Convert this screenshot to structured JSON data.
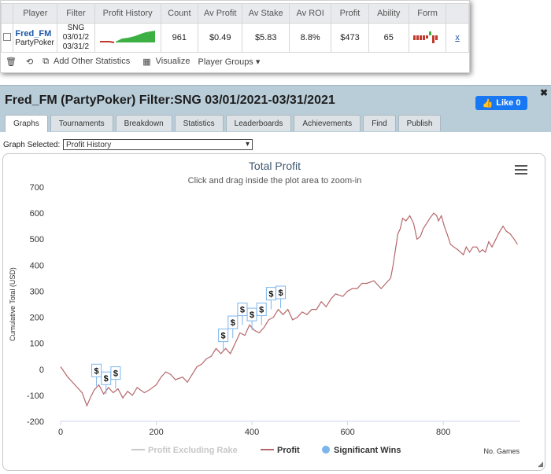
{
  "summary": {
    "headers": [
      "Player",
      "Filter",
      "Profit History",
      "Count",
      "Av Profit",
      "Av Stake",
      "Av ROI",
      "Profit",
      "Ability",
      "Form",
      ""
    ],
    "row": {
      "player_name": "Fred_FM",
      "player_site": "PartyPoker",
      "filter_type": "SNG",
      "filter_from": "03/01/2",
      "filter_to": "03/31/2",
      "count": "961",
      "av_profit": "$0.49",
      "av_stake": "$5.83",
      "av_roi": "8.8%",
      "profit": "$473",
      "ability": "65",
      "remove": "x"
    }
  },
  "toolbar": {
    "add_stats": "Add Other Statistics",
    "visualize": "Visualize",
    "player_groups": "Player Groups ▾"
  },
  "panel": {
    "title": "Fred_FM (PartyPoker) Filter:SNG 03/01/2021-03/31/2021",
    "like": "Like 0",
    "tabs": [
      "Graphs",
      "Tournaments",
      "Breakdown",
      "Statistics",
      "Leaderboards",
      "Achievements",
      "Find",
      "Publish"
    ],
    "graph_selected_label": "Graph Selected:",
    "graph_selected_value": "Profit History"
  },
  "colors": {
    "profit_line": "#b5676a",
    "legend_grey": "#c8c8c8",
    "significant": "#7cb5ec",
    "title": "#3e576f"
  },
  "chart_data": {
    "type": "line",
    "title": "Total Profit",
    "subtitle": "Click and drag inside the plot area to zoom-in",
    "ylabel": "Cumulative Total (USD)",
    "xlabel": "No. Games",
    "xlim": [
      0,
      961
    ],
    "ylim": [
      -200,
      700
    ],
    "x_ticks": [
      0,
      200,
      400,
      600,
      800
    ],
    "y_ticks": [
      -200,
      -100,
      0,
      100,
      200,
      300,
      400,
      500,
      600,
      700
    ],
    "legend": [
      "Profit Excluding Rake",
      "Profit",
      "Significant Wins"
    ],
    "series": [
      {
        "name": "Profit",
        "points": [
          [
            0,
            10
          ],
          [
            15,
            -30
          ],
          [
            30,
            -60
          ],
          [
            45,
            -90
          ],
          [
            55,
            -140
          ],
          [
            62,
            -110
          ],
          [
            70,
            -80
          ],
          [
            80,
            -60
          ],
          [
            90,
            -95
          ],
          [
            100,
            -70
          ],
          [
            110,
            -90
          ],
          [
            120,
            -75
          ],
          [
            130,
            -110
          ],
          [
            140,
            -85
          ],
          [
            150,
            -100
          ],
          [
            160,
            -70
          ],
          [
            175,
            -90
          ],
          [
            185,
            -80
          ],
          [
            200,
            -60
          ],
          [
            210,
            -30
          ],
          [
            220,
            -10
          ],
          [
            230,
            -20
          ],
          [
            240,
            -40
          ],
          [
            255,
            -30
          ],
          [
            265,
            -50
          ],
          [
            275,
            -20
          ],
          [
            285,
            10
          ],
          [
            295,
            20
          ],
          [
            305,
            40
          ],
          [
            315,
            50
          ],
          [
            325,
            80
          ],
          [
            335,
            60
          ],
          [
            345,
            80
          ],
          [
            355,
            60
          ],
          [
            365,
            100
          ],
          [
            375,
            140
          ],
          [
            385,
            130
          ],
          [
            395,
            170
          ],
          [
            405,
            150
          ],
          [
            415,
            140
          ],
          [
            425,
            160
          ],
          [
            435,
            190
          ],
          [
            445,
            200
          ],
          [
            455,
            230
          ],
          [
            465,
            210
          ],
          [
            475,
            230
          ],
          [
            485,
            190
          ],
          [
            495,
            200
          ],
          [
            505,
            220
          ],
          [
            515,
            210
          ],
          [
            525,
            230
          ],
          [
            535,
            230
          ],
          [
            545,
            260
          ],
          [
            555,
            240
          ],
          [
            565,
            270
          ],
          [
            575,
            290
          ],
          [
            590,
            280
          ],
          [
            600,
            300
          ],
          [
            610,
            310
          ],
          [
            620,
            310
          ],
          [
            630,
            330
          ],
          [
            640,
            330
          ],
          [
            655,
            340
          ],
          [
            670,
            310
          ],
          [
            680,
            330
          ],
          [
            690,
            350
          ],
          [
            695,
            400
          ],
          [
            700,
            460
          ],
          [
            705,
            520
          ],
          [
            710,
            540
          ],
          [
            715,
            580
          ],
          [
            722,
            570
          ],
          [
            730,
            590
          ],
          [
            738,
            560
          ],
          [
            745,
            500
          ],
          [
            752,
            510
          ],
          [
            758,
            540
          ],
          [
            765,
            560
          ],
          [
            772,
            580
          ],
          [
            780,
            600
          ],
          [
            786,
            590
          ],
          [
            790,
            570
          ],
          [
            796,
            590
          ],
          [
            802,
            550
          ],
          [
            808,
            520
          ],
          [
            815,
            480
          ],
          [
            822,
            470
          ],
          [
            830,
            460
          ],
          [
            836,
            450
          ],
          [
            842,
            440
          ],
          [
            848,
            470
          ],
          [
            855,
            450
          ],
          [
            862,
            470
          ],
          [
            870,
            470
          ],
          [
            876,
            450
          ],
          [
            882,
            460
          ],
          [
            888,
            450
          ],
          [
            895,
            490
          ],
          [
            902,
            470
          ],
          [
            910,
            500
          ],
          [
            918,
            530
          ],
          [
            925,
            550
          ],
          [
            932,
            530
          ],
          [
            940,
            520
          ],
          [
            948,
            500
          ],
          [
            955,
            480
          ]
        ]
      }
    ],
    "significant_wins": [
      {
        "x": 75,
        "y": -65
      },
      {
        "x": 95,
        "y": -95
      },
      {
        "x": 115,
        "y": -75
      },
      {
        "x": 340,
        "y": 70
      },
      {
        "x": 360,
        "y": 120
      },
      {
        "x": 380,
        "y": 170
      },
      {
        "x": 400,
        "y": 150
      },
      {
        "x": 420,
        "y": 170
      },
      {
        "x": 440,
        "y": 230
      },
      {
        "x": 460,
        "y": 235
      }
    ],
    "grid": false,
    "legend_placement": "bottom"
  }
}
